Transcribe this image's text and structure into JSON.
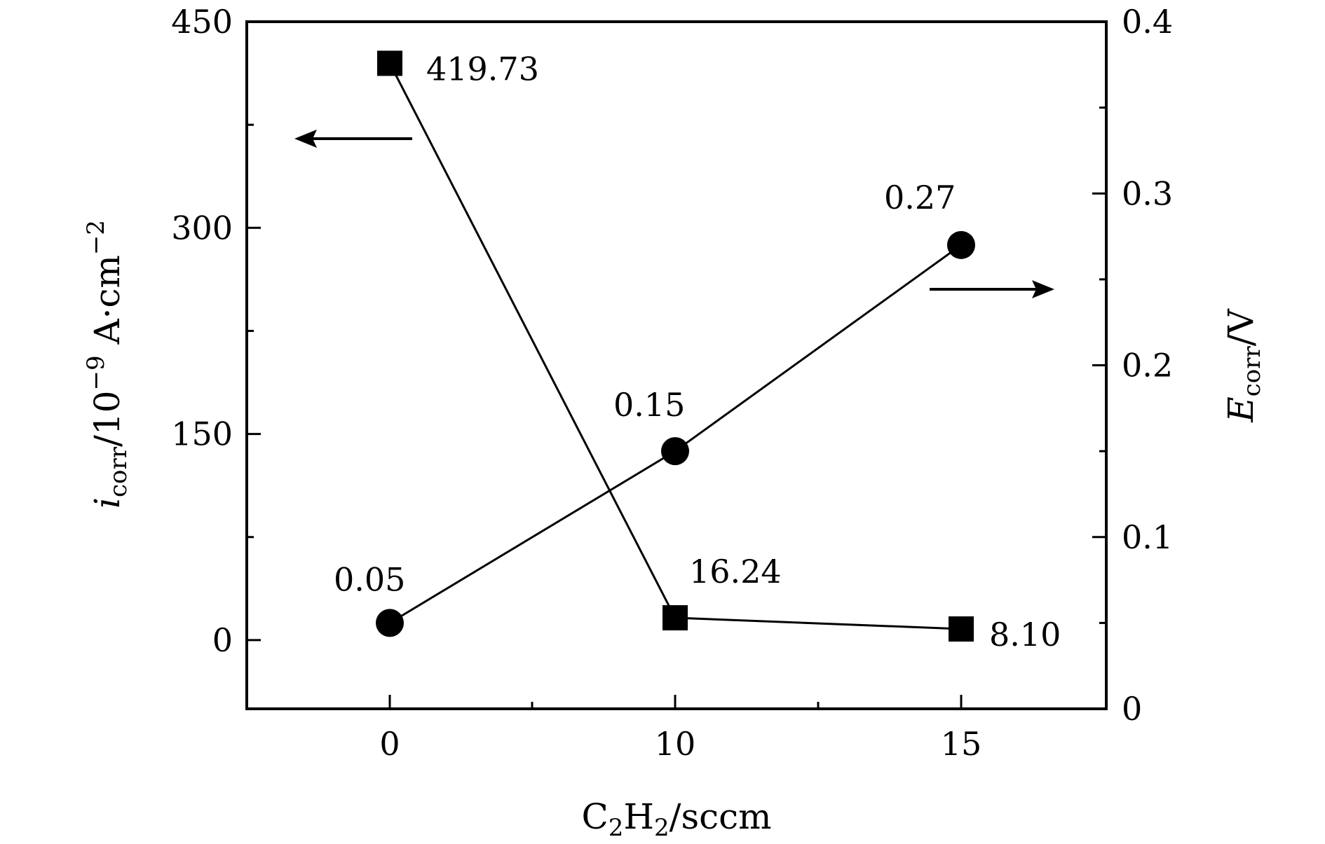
{
  "chart_data": {
    "type": "line",
    "categories": [
      "0",
      "10",
      "15"
    ],
    "x_tick_labels": [
      "0",
      "10",
      "15"
    ],
    "xlabel": {
      "main": "C",
      "sub1": "2",
      "mid": "H",
      "sub2": "2",
      "tail": "/sccm"
    },
    "y_left": {
      "label": {
        "main": "i",
        "sub": "corr",
        "tail": "/10",
        "sup": "−9",
        "unit": " A·cm",
        "sup2": "−2"
      },
      "ylim": [
        -50,
        450
      ],
      "ticks": [
        0,
        150,
        300,
        450
      ],
      "tick_labels": [
        "0",
        "150",
        "300",
        "450"
      ]
    },
    "y_right": {
      "label": {
        "main": "E",
        "sub": "corr",
        "tail": "/V"
      },
      "ylim": [
        0,
        0.4
      ],
      "ticks": [
        0,
        0.1,
        0.2,
        0.3,
        0.4
      ],
      "tick_labels": [
        "0",
        "0.1",
        "0.2",
        "0.3",
        "0.4"
      ]
    },
    "series": [
      {
        "axis": "left",
        "marker": "square",
        "values": [
          419.73,
          16.24,
          8.1
        ],
        "labels": [
          "419.73",
          "16.24",
          "8.10"
        ]
      },
      {
        "axis": "right",
        "marker": "circle",
        "values": [
          0.05,
          0.15,
          0.27
        ],
        "labels": [
          "0.05",
          "0.15",
          "0.27"
        ]
      }
    ],
    "annotations": [
      {
        "type": "arrow",
        "direction": "left",
        "series": 0
      },
      {
        "type": "arrow",
        "direction": "right",
        "series": 1
      }
    ],
    "grid": false
  }
}
